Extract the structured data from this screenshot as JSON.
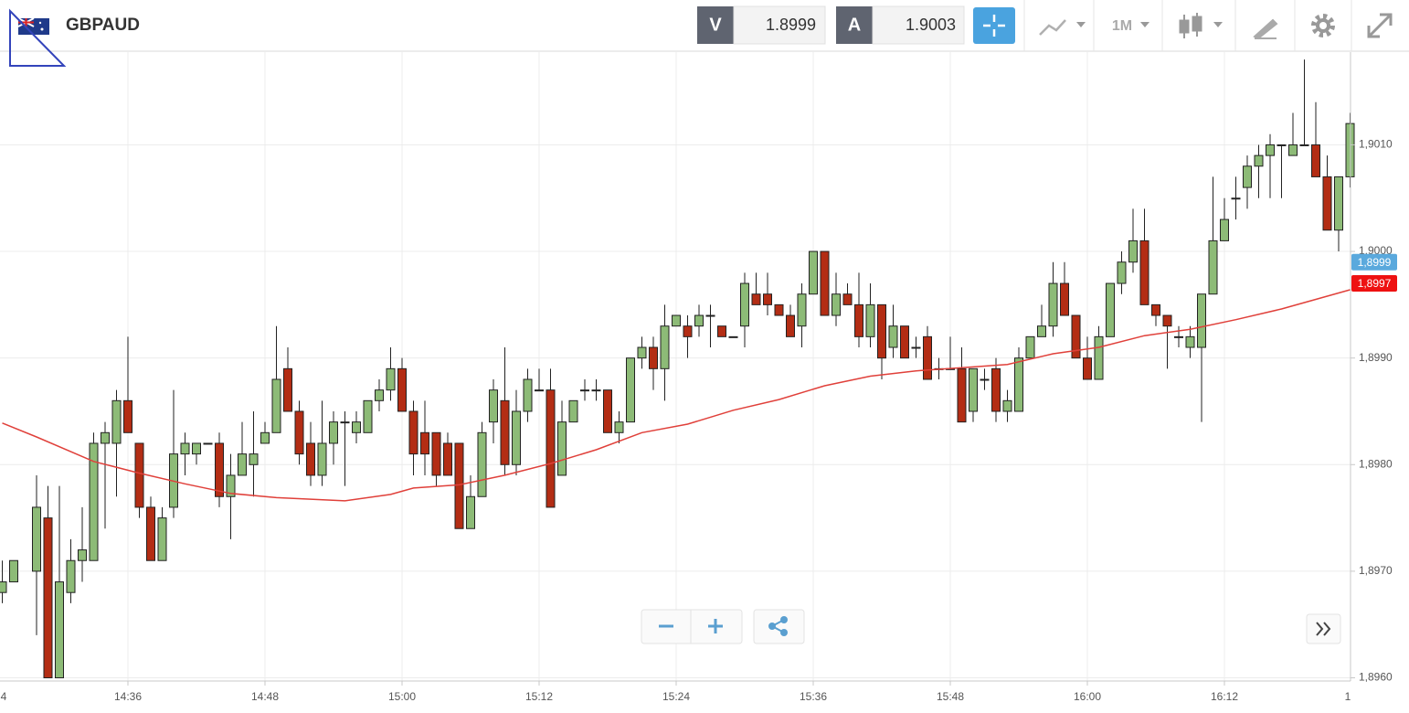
{
  "header": {
    "bid_label": "V",
    "bid": "1.8999",
    "ask_label": "A",
    "ask": "1.9003",
    "timeframe": "1M"
  },
  "chart_data": {
    "type": "candlestick",
    "title": "GBPAUD",
    "up_color": "#8dbb77",
    "down_color": "#b32d14",
    "doji_color": "#333333",
    "grid": true,
    "xlim": [
      864.8,
      983.04
    ],
    "ylim": [
      1.89597,
      1.90187
    ],
    "xticks": [
      {
        "value": 864,
        "label": "4"
      },
      {
        "value": 876,
        "label": "14:36"
      },
      {
        "value": 888,
        "label": "14:48"
      },
      {
        "value": 900,
        "label": "15:00"
      },
      {
        "value": 912,
        "label": "15:12"
      },
      {
        "value": 924,
        "label": "15:24"
      },
      {
        "value": 936,
        "label": "15:36"
      },
      {
        "value": 948,
        "label": "15:48"
      },
      {
        "value": 960,
        "label": "16:00"
      },
      {
        "value": 972,
        "label": "16:12"
      },
      {
        "value": 984,
        "label": "1"
      }
    ],
    "yticks": [
      {
        "value": 1.896,
        "label": "1,8960"
      },
      {
        "value": 1.897,
        "label": "1,8970"
      },
      {
        "value": 1.898,
        "label": "1,8980"
      },
      {
        "value": 1.899,
        "label": "1,8990"
      },
      {
        "value": 1.9,
        "label": "1,9000"
      },
      {
        "value": 1.901,
        "label": "1,9010"
      }
    ],
    "x": [
      865,
      866,
      868,
      869,
      870,
      871,
      872,
      873,
      874,
      875,
      876,
      877,
      878,
      879,
      880,
      881,
      882,
      883,
      884,
      885,
      886,
      887,
      888,
      889,
      890,
      891,
      892,
      893,
      894,
      895,
      896,
      897,
      898,
      899,
      900,
      901,
      902,
      903,
      904,
      905,
      906,
      907,
      908,
      909,
      910,
      911,
      912,
      913,
      914,
      915,
      916,
      917,
      918,
      919,
      920,
      921,
      922,
      923,
      924,
      925,
      926,
      927,
      928,
      929,
      930,
      931,
      932,
      933,
      934,
      935,
      936,
      937,
      938,
      939,
      940,
      941,
      942,
      943,
      944,
      945,
      946,
      947,
      948,
      949,
      950,
      951,
      952,
      953,
      954,
      955,
      956,
      957,
      958,
      959,
      960,
      961,
      962,
      963,
      964,
      965,
      966,
      967,
      968,
      969,
      970,
      971,
      972,
      973,
      974,
      975,
      976,
      977,
      978,
      979,
      980,
      981,
      982,
      983
    ],
    "open": [
      1.8968,
      1.8969,
      1.897,
      1.8975,
      1.896,
      1.8968,
      1.8971,
      1.8971,
      1.8982,
      1.8982,
      1.8986,
      1.8982,
      1.8976,
      1.8971,
      1.8976,
      1.8981,
      1.8981,
      1.8982,
      1.8982,
      1.8977,
      1.8979,
      1.898,
      1.8982,
      1.8983,
      1.8989,
      1.8985,
      1.8982,
      1.8979,
      1.8982,
      1.8984,
      1.8983,
      1.8983,
      1.8986,
      1.8987,
      1.8989,
      1.8985,
      1.8983,
      1.8983,
      1.8982,
      1.8982,
      1.8974,
      1.8977,
      1.8984,
      1.8986,
      1.898,
      1.8985,
      1.8987,
      1.8987,
      1.8979,
      1.8984,
      1.8987,
      1.8987,
      1.8987,
      1.8983,
      1.8984,
      1.899,
      1.8991,
      1.8989,
      1.8993,
      1.8993,
      1.8993,
      1.8994,
      1.8993,
      1.8992,
      1.8993,
      1.8996,
      1.8996,
      1.8995,
      1.8994,
      1.8993,
      1.8996,
      1.9,
      1.8994,
      1.8996,
      1.8995,
      1.8992,
      1.8995,
      1.8991,
      1.8993,
      1.8991,
      1.8992,
      1.8989,
      1.8989,
      1.8989,
      1.8985,
      1.8988,
      1.8989,
      1.8985,
      1.8985,
      1.899,
      1.8992,
      1.8993,
      1.8997,
      1.8994,
      1.899,
      1.8988,
      1.8992,
      1.8997,
      1.8999,
      1.9001,
      1.8995,
      1.8994,
      1.8992,
      1.8991,
      1.8991,
      1.8996,
      1.9001,
      1.9005,
      1.9006,
      1.9008,
      1.9009,
      1.901,
      1.9009,
      1.901,
      1.901,
      1.9007,
      1.9002,
      1.9007
    ],
    "high": [
      1.8971,
      1.8971,
      1.8979,
      1.8978,
      1.8978,
      1.8973,
      1.8976,
      1.8983,
      1.8984,
      1.8987,
      1.8992,
      1.8982,
      1.8977,
      1.8976,
      1.8987,
      1.8983,
      1.8982,
      1.8982,
      1.8983,
      1.8981,
      1.8984,
      1.8985,
      1.8984,
      1.8993,
      1.8991,
      1.8986,
      1.8984,
      1.8986,
      1.8985,
      1.8985,
      1.8985,
      1.8986,
      1.8988,
      1.8991,
      1.899,
      1.8986,
      1.8986,
      1.8983,
      1.8983,
      1.8982,
      1.8979,
      1.8984,
      1.8988,
      1.8991,
      1.8987,
      1.8989,
      1.8989,
      1.8989,
      1.8986,
      1.8986,
      1.8988,
      1.8988,
      1.8987,
      1.8985,
      1.899,
      1.8992,
      1.8992,
      1.8995,
      1.8994,
      1.8994,
      1.8995,
      1.8995,
      1.8993,
      1.8992,
      1.8998,
      1.8998,
      1.8998,
      1.8995,
      1.8995,
      1.8997,
      1.9,
      1.9,
      1.8998,
      1.8997,
      1.8998,
      1.8997,
      1.8995,
      1.8995,
      1.8993,
      1.8992,
      1.8993,
      1.899,
      1.8992,
      1.8991,
      1.8989,
      1.8989,
      1.899,
      1.8987,
      1.8991,
      1.8992,
      1.8995,
      1.8999,
      1.8999,
      1.8994,
      1.8992,
      1.8993,
      1.8997,
      1.9,
      1.9004,
      1.9004,
      1.8995,
      1.8994,
      1.8993,
      1.8993,
      1.8996,
      1.9007,
      1.9005,
      1.9007,
      1.9009,
      1.901,
      1.9011,
      1.901,
      1.9013,
      1.9018,
      1.9014,
      1.9009,
      1.9007,
      1.9013
    ],
    "low": [
      1.8967,
      1.8969,
      1.8964,
      1.896,
      1.896,
      1.8967,
      1.8969,
      1.8971,
      1.8974,
      1.8977,
      1.8983,
      1.8975,
      1.8971,
      1.8971,
      1.8975,
      1.8979,
      1.898,
      1.8982,
      1.8976,
      1.8973,
      1.8979,
      1.8977,
      1.8982,
      1.8983,
      1.8985,
      1.898,
      1.8978,
      1.8978,
      1.898,
      1.8978,
      1.8982,
      1.8983,
      1.8985,
      1.8986,
      1.8985,
      1.8979,
      1.8979,
      1.8978,
      1.8979,
      1.8974,
      1.8974,
      1.8977,
      1.8982,
      1.8979,
      1.8979,
      1.8984,
      1.8987,
      1.8976,
      1.8979,
      1.8984,
      1.8986,
      1.8986,
      1.8983,
      1.8982,
      1.8984,
      1.8989,
      1.8987,
      1.8986,
      1.8993,
      1.899,
      1.8992,
      1.8991,
      1.8992,
      1.8992,
      1.8991,
      1.8995,
      1.8994,
      1.8994,
      1.8992,
      1.8991,
      1.8996,
      1.8994,
      1.8993,
      1.8995,
      1.8991,
      1.8991,
      1.8988,
      1.899,
      1.899,
      1.899,
      1.8988,
      1.8988,
      1.8989,
      1.8984,
      1.8984,
      1.8987,
      1.8984,
      1.8984,
      1.8985,
      1.899,
      1.8992,
      1.8992,
      1.8994,
      1.899,
      1.8988,
      1.8988,
      1.8992,
      1.8996,
      1.8998,
      1.8995,
      1.8993,
      1.8989,
      1.8991,
      1.899,
      1.8984,
      1.8996,
      1.9001,
      1.9003,
      1.9004,
      1.9005,
      1.9005,
      1.9005,
      1.9009,
      1.901,
      1.9007,
      1.9002,
      1.9,
      1.9006
    ],
    "close": [
      1.8969,
      1.8971,
      1.8976,
      1.896,
      1.8969,
      1.8971,
      1.8972,
      1.8982,
      1.8983,
      1.8986,
      1.8983,
      1.8976,
      1.8971,
      1.8975,
      1.8981,
      1.8982,
      1.8982,
      1.8982,
      1.8977,
      1.8979,
      1.8981,
      1.8981,
      1.8983,
      1.8988,
      1.8985,
      1.8981,
      1.8979,
      1.8982,
      1.8984,
      1.8984,
      1.8984,
      1.8986,
      1.8987,
      1.8989,
      1.8985,
      1.8981,
      1.8981,
      1.8979,
      1.8979,
      1.8974,
      1.8977,
      1.8983,
      1.8987,
      1.898,
      1.8985,
      1.8988,
      1.8987,
      1.8976,
      1.8984,
      1.8986,
      1.8987,
      1.8987,
      1.8983,
      1.8984,
      1.899,
      1.8991,
      1.8989,
      1.8993,
      1.8994,
      1.8992,
      1.8994,
      1.8994,
      1.8992,
      1.8992,
      1.8997,
      1.8995,
      1.8995,
      1.8994,
      1.8992,
      1.8996,
      1.9,
      1.8994,
      1.8996,
      1.8995,
      1.8992,
      1.8995,
      1.899,
      1.8993,
      1.899,
      1.8991,
      1.8988,
      1.8989,
      1.8989,
      1.8984,
      1.8989,
      1.8988,
      1.8985,
      1.8986,
      1.899,
      1.8992,
      1.8993,
      1.8997,
      1.8994,
      1.899,
      1.8988,
      1.8992,
      1.8997,
      1.8999,
      1.9001,
      1.8995,
      1.8994,
      1.8993,
      1.8992,
      1.8992,
      1.8996,
      1.9001,
      1.9003,
      1.9005,
      1.9008,
      1.9009,
      1.901,
      1.901,
      1.901,
      1.901,
      1.9007,
      1.9002,
      1.9007,
      1.9012
    ],
    "ma": {
      "color": "#e0403a",
      "x": [
        865,
        868,
        873,
        877,
        881,
        885,
        889,
        895,
        899,
        901,
        905,
        909,
        913,
        917,
        921,
        925,
        929,
        933,
        937,
        941,
        945,
        949,
        953,
        957,
        961,
        965,
        969,
        973,
        977,
        981,
        983
      ],
      "values": [
        1.89839,
        1.89826,
        1.89803,
        1.89792,
        1.89782,
        1.89773,
        1.89769,
        1.89766,
        1.89772,
        1.89778,
        1.89781,
        1.8979,
        1.89801,
        1.89814,
        1.8983,
        1.89838,
        1.89851,
        1.89861,
        1.89874,
        1.89883,
        1.89888,
        1.89891,
        1.89894,
        1.89904,
        1.8991,
        1.89921,
        1.89927,
        1.89936,
        1.89946,
        1.89958,
        1.89964
      ]
    },
    "price_tags": [
      {
        "value": 1.8999,
        "label": "1,8999",
        "color": "#5aa9dd"
      },
      {
        "value": 1.8997,
        "label": "1,8997",
        "color": "#ee1111"
      }
    ]
  }
}
